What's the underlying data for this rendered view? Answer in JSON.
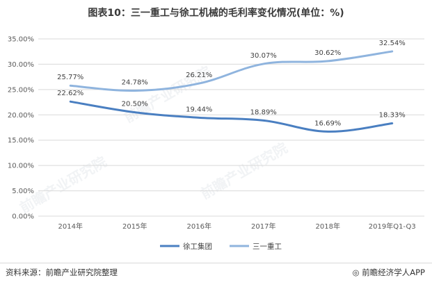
{
  "title": "图表10：三一重工与徐工机械的毛利率变化情况(单位：%)",
  "source": "资料来源：前瞻产业研究院整理",
  "brand": "前瞻经济学人APP",
  "watermark": "前瞻产业研究院",
  "colors": {
    "xugong": "#4a7fc1",
    "sany": "#8fb4de",
    "grid": "#d9d9d9"
  },
  "chart_data": {
    "type": "line",
    "categories": [
      "2014年",
      "2015年",
      "2016年",
      "2017年",
      "2018年",
      "2019年Q1-Q3"
    ],
    "y_ticks": [
      "0.00%",
      "5.00%",
      "10.00%",
      "15.00%",
      "20.00%",
      "25.00%",
      "30.00%",
      "35.00%"
    ],
    "ylim": [
      0,
      35
    ],
    "grid": true,
    "legend_position": "bottom",
    "series": [
      {
        "name": "徐工集团",
        "values": [
          22.62,
          20.5,
          19.44,
          18.89,
          16.69,
          18.33
        ],
        "labels": [
          "22.62%",
          "20.50%",
          "19.44%",
          "18.89%",
          "16.69%",
          "18.33%"
        ]
      },
      {
        "name": "三一重工",
        "values": [
          25.77,
          24.78,
          26.21,
          30.07,
          30.62,
          32.54
        ],
        "labels": [
          "25.77%",
          "24.78%",
          "26.21%",
          "30.07%",
          "30.62%",
          "32.54%"
        ]
      }
    ]
  }
}
